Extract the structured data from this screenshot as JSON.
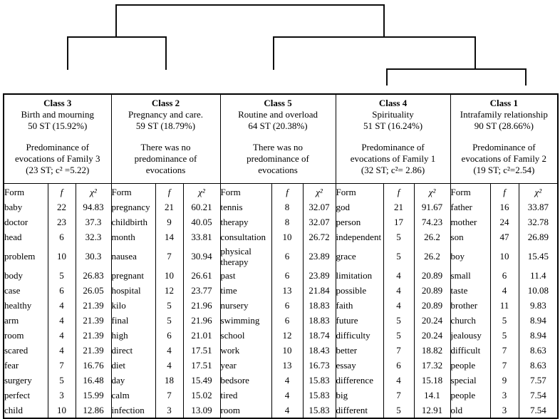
{
  "dendrogram": {
    "structure": [
      [
        "Class 3",
        "Class 2"
      ],
      [
        "Class 5",
        [
          "Class 4",
          "Class 1"
        ]
      ]
    ]
  },
  "table": {
    "col_headers": {
      "form": "Form",
      "f": "f",
      "chi2": "χ²"
    },
    "classes": [
      {
        "title": "Class 3",
        "subtitle": "Birth and mourning",
        "st": "50 ST (15.92%)",
        "note_lines": [
          "Predominance of",
          "evocations of Family 3",
          "(23 ST; c² =5.22)"
        ],
        "rows": [
          [
            "baby",
            "22",
            "94.83"
          ],
          [
            "doctor",
            "23",
            "37.3"
          ],
          [
            "head",
            "6",
            "32.3"
          ],
          [
            "problem",
            "10",
            "30.3"
          ],
          [
            "body",
            "5",
            "26.83"
          ],
          [
            "case",
            "6",
            "26.05"
          ],
          [
            "healthy",
            "4",
            "21.39"
          ],
          [
            "arm",
            "4",
            "21.39"
          ],
          [
            "room",
            "4",
            "21.39"
          ],
          [
            "scared",
            "4",
            "21.39"
          ],
          [
            "fear",
            "7",
            "16.76"
          ],
          [
            "surgery",
            "5",
            "16.48"
          ],
          [
            "perfect",
            "3",
            "15.99"
          ],
          [
            "child",
            "10",
            "12.86"
          ]
        ]
      },
      {
        "title": "Class 2",
        "subtitle": "Pregnancy and care.",
        "st": "59 ST (18.79%)",
        "note_lines": [
          "There was no",
          "predominance of",
          "evocations"
        ],
        "rows": [
          [
            "pregnancy",
            "21",
            "60.21"
          ],
          [
            "childbirth",
            "9",
            "40.05"
          ],
          [
            "month",
            "14",
            "33.81"
          ],
          [
            "nausea",
            "7",
            "30.94"
          ],
          [
            "pregnant",
            "10",
            "26.61"
          ],
          [
            "hospital",
            "12",
            "23.77"
          ],
          [
            "kilo",
            "5",
            "21.96"
          ],
          [
            "final",
            "5",
            "21.96"
          ],
          [
            "high",
            "6",
            "21.01"
          ],
          [
            "direct",
            "4",
            "17.51"
          ],
          [
            "diet",
            "4",
            "17.51"
          ],
          [
            "day",
            "18",
            "15.49"
          ],
          [
            "calm",
            "7",
            "15.02"
          ],
          [
            "infection",
            "3",
            "13.09"
          ]
        ]
      },
      {
        "title": "Class 5",
        "subtitle": "Routine and overload",
        "st": "64 ST (20.38%)",
        "note_lines": [
          "There was no",
          "predominance of",
          "evocations"
        ],
        "rows": [
          [
            "tennis",
            "8",
            "32.07"
          ],
          [
            "therapy",
            "8",
            "32.07"
          ],
          [
            "consultation",
            "10",
            "26.72"
          ],
          [
            "physical\ntherapy",
            "6",
            "23.89"
          ],
          [
            "past",
            "6",
            "23.89"
          ],
          [
            "time",
            "13",
            "21.84"
          ],
          [
            "nursery",
            "6",
            "18.83"
          ],
          [
            "swimming",
            "6",
            "18.83"
          ],
          [
            "school",
            "12",
            "18.74"
          ],
          [
            "work",
            "10",
            "18.43"
          ],
          [
            "year",
            "13",
            "16.73"
          ],
          [
            "bedsore",
            "4",
            "15.83"
          ],
          [
            "tired",
            "4",
            "15.83"
          ],
          [
            "room",
            "4",
            "15.83"
          ]
        ]
      },
      {
        "title": "Class 4",
        "subtitle": "Spirituality",
        "st": "51 ST (16.24%)",
        "note_lines": [
          "Predominance of",
          "evocations of Family 1",
          "(32 ST; c²= 2.86)"
        ],
        "rows": [
          [
            "god",
            "21",
            "91.67"
          ],
          [
            "person",
            "17",
            "74.23"
          ],
          [
            "independent",
            "5",
            "26.2"
          ],
          [
            "grace",
            "5",
            "26.2"
          ],
          [
            "limitation",
            "4",
            "20.89"
          ],
          [
            "possible",
            "4",
            "20.89"
          ],
          [
            "faith",
            "4",
            "20.89"
          ],
          [
            "future",
            "5",
            "20.24"
          ],
          [
            "difficulty",
            "5",
            "20.24"
          ],
          [
            "better",
            "7",
            "18.82"
          ],
          [
            "essay",
            "6",
            "17.32"
          ],
          [
            "difference",
            "4",
            "15.18"
          ],
          [
            "big",
            "7",
            "14.1"
          ],
          [
            "different",
            "5",
            "12.91"
          ]
        ]
      },
      {
        "title": "Class 1",
        "subtitle": "Intrafamily relationship",
        "st": "90 ST (28.66%)",
        "note_lines": [
          "Predominance of",
          "evocations of Family 2",
          "(19 ST; c²=2.54)"
        ],
        "rows": [
          [
            "father",
            "16",
            "33.87"
          ],
          [
            "mother",
            "24",
            "32.78"
          ],
          [
            "son",
            "47",
            "26.89"
          ],
          [
            "boy",
            "10",
            "15.45"
          ],
          [
            "small",
            "6",
            "11.4"
          ],
          [
            "taste",
            "4",
            "10.08"
          ],
          [
            "brother",
            "11",
            "9.83"
          ],
          [
            "church",
            "5",
            "8.94"
          ],
          [
            "jealousy",
            "5",
            "8.94"
          ],
          [
            "difficult",
            "7",
            "8.63"
          ],
          [
            "people",
            "7",
            "8.63"
          ],
          [
            "special",
            "9",
            "7.57"
          ],
          [
            "people",
            "3",
            "7.54"
          ],
          [
            "old",
            "3",
            "7.54"
          ]
        ]
      }
    ]
  }
}
